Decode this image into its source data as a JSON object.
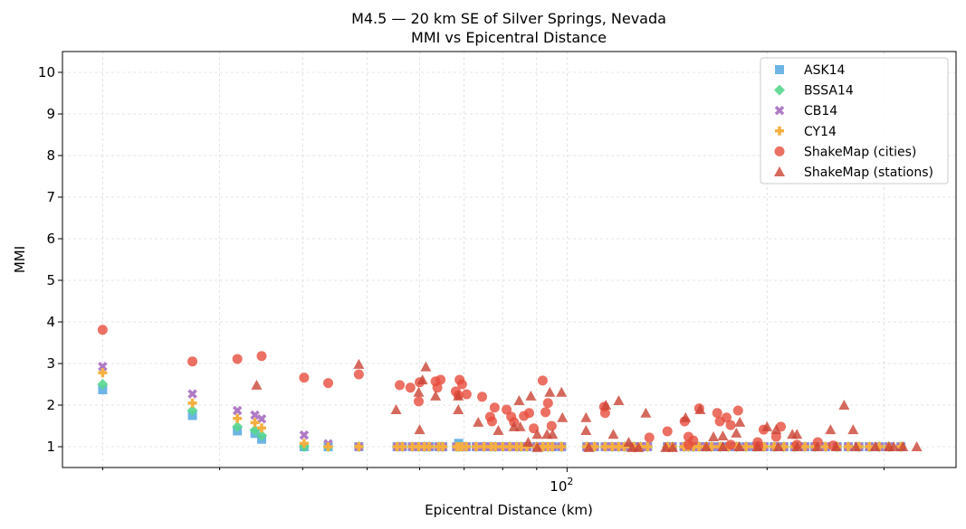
{
  "chart_data": {
    "type": "scatter",
    "title": "M4.5 — 20 km SE of Silver Springs, Nevada",
    "subtitle": "MMI vs Epicentral Distance",
    "xlabel": "Epicentral Distance (km)",
    "ylabel": "MMI",
    "xscale": "log",
    "xlim": [
      17.4,
      385
    ],
    "ylim": [
      0.5,
      10.5
    ],
    "x_major_ticks": [
      {
        "value": 100,
        "base": "10",
        "exp": "2"
      }
    ],
    "x_minor_ticks": [
      20,
      30,
      40,
      50,
      60,
      70,
      80,
      90,
      200,
      300
    ],
    "y_ticks": [
      "1",
      "2",
      "3",
      "4",
      "5",
      "6",
      "7",
      "8",
      "9",
      "10"
    ],
    "grid": true,
    "legend_position": "top-right",
    "model_distances": [
      20.0,
      27.3,
      31.9,
      33.9,
      34.7,
      40.2,
      43.7,
      48.6,
      55.5,
      56.5,
      58.5,
      59.8,
      61.0,
      62.0,
      64.1,
      65.0,
      68.2,
      68.7,
      69.5,
      70.5,
      73.0,
      75.0,
      76.9,
      78.0,
      80.0,
      82.0,
      84.0,
      85.3,
      87.0,
      90.0,
      92.0,
      93.6,
      95.0,
      98.1,
      107.1,
      110.0,
      114.1,
      117.0,
      119.6,
      122.0,
      126.0,
      129.0,
      132.2,
      141.6,
      144.0,
      150.0,
      152.3,
      155.0,
      158.0,
      162.0,
      165.0,
      170.0,
      175.0,
      180.0,
      186.0,
      192.0,
      198.0,
      205.0,
      212.0,
      220.0,
      228.0,
      236.0,
      245.0,
      255.0,
      265.0,
      275.0,
      285.0,
      295.0,
      305.0,
      318.0
    ],
    "series": [
      {
        "name": "ASK14",
        "marker": "square",
        "color": "#5DADE2",
        "y": [
          2.37,
          1.75,
          1.38,
          1.32,
          1.18,
          1.0,
          1.0,
          1,
          1,
          1,
          1,
          1,
          1,
          1,
          1,
          1,
          1,
          1.08,
          1,
          1,
          1,
          1,
          1,
          1,
          1,
          1,
          1,
          1,
          1,
          1,
          1,
          1,
          1,
          1,
          1,
          1,
          1,
          1,
          1,
          1,
          1,
          1,
          1,
          1,
          1,
          1,
          1,
          1,
          1,
          1,
          1,
          1,
          1,
          1,
          1,
          1,
          1,
          1,
          1,
          1,
          1,
          1,
          1,
          1,
          1,
          1,
          1,
          1,
          1,
          1
        ]
      },
      {
        "name": "BSSA14",
        "marker": "diamond",
        "color": "#58D68D",
        "y": [
          2.5,
          1.87,
          1.48,
          1.4,
          1.27,
          1.0,
          1.0,
          1,
          1,
          1,
          1,
          1,
          1,
          1,
          1,
          1,
          1,
          1,
          1,
          1,
          1,
          1,
          1,
          1,
          1,
          1,
          1,
          1,
          1,
          1,
          1,
          1,
          1,
          1,
          1,
          1,
          1,
          1,
          1,
          1,
          1,
          1,
          1,
          1,
          1,
          1,
          1,
          1,
          1,
          1,
          1,
          1,
          1,
          1,
          1,
          1,
          1,
          1,
          1,
          1,
          1,
          1,
          1,
          1,
          1,
          1,
          1,
          1,
          1,
          1
        ]
      },
      {
        "name": "CB14",
        "marker": "x",
        "color": "#AF7AC5",
        "y": [
          2.93,
          2.27,
          1.87,
          1.76,
          1.67,
          1.28,
          1.07,
          1,
          1,
          1,
          1,
          1,
          1,
          1,
          1,
          1,
          1,
          1,
          1,
          1,
          1,
          1,
          1,
          1,
          1,
          1,
          1,
          1,
          1,
          1,
          1,
          1,
          1,
          1,
          1,
          1,
          1,
          1,
          1,
          1,
          1,
          1,
          1,
          1,
          1,
          1,
          1,
          1,
          1,
          1,
          1,
          1,
          1,
          1,
          1,
          1,
          1,
          1,
          1,
          1,
          1,
          1,
          1,
          1,
          1,
          1,
          1,
          1,
          1,
          1
        ]
      },
      {
        "name": "CY14",
        "marker": "plus",
        "color": "#F5B041",
        "y": [
          2.78,
          2.05,
          1.68,
          1.58,
          1.45,
          1.08,
          1.0,
          1,
          1,
          1,
          1,
          1,
          1,
          1,
          1,
          1,
          1,
          1,
          1,
          1,
          1,
          1,
          1,
          1,
          1,
          1,
          1,
          1,
          1,
          1,
          1,
          1,
          1,
          1,
          1,
          1,
          1,
          1,
          1,
          1,
          1,
          1,
          1,
          1,
          1,
          1,
          1,
          1,
          1,
          1,
          1,
          1,
          1,
          1,
          1,
          1,
          1,
          1,
          1,
          1,
          1,
          1,
          1,
          1,
          1,
          1,
          1,
          1,
          1,
          1
        ]
      },
      {
        "name": "ShakeMap (cities)",
        "marker": "circle",
        "color": "#E74C3C",
        "x": [
          20.0,
          27.3,
          31.9,
          34.7,
          40.2,
          43.7,
          48.6,
          56.0,
          58.1,
          60.0,
          59.8,
          63.4,
          64.5,
          63.8,
          68.9,
          69.5,
          68.0,
          68.6,
          70.6,
          74.5,
          77.8,
          76.6,
          77.1,
          81.1,
          82.4,
          83.2,
          86.1,
          87.7,
          89.1,
          91.9,
          93.6,
          92.8,
          94.8,
          113.7,
          114.1,
          133.0,
          141.6,
          150.3,
          158.1,
          168.3,
          180.9,
          169.8,
          173.8,
          176.3,
          197.6,
          209.8,
          206.4,
          193.6,
          238.4,
          152.3,
          154.9,
          152.3,
          176.3,
          194.0,
          221.8,
          251.5
        ],
        "y": [
          3.81,
          3.05,
          3.11,
          3.18,
          2.66,
          2.53,
          2.74,
          2.48,
          2.42,
          2.55,
          2.09,
          2.57,
          2.61,
          2.42,
          2.61,
          2.5,
          2.33,
          2.24,
          2.26,
          2.2,
          1.94,
          1.72,
          1.61,
          1.89,
          1.72,
          1.59,
          1.74,
          1.81,
          1.44,
          2.59,
          2.05,
          1.83,
          1.5,
          1.96,
          1.81,
          1.22,
          1.37,
          1.61,
          1.92,
          1.81,
          1.87,
          1.61,
          1.7,
          1.52,
          1.41,
          1.48,
          1.24,
          1.11,
          1.11,
          1.24,
          1.15,
          1.05,
          1.05,
          1.02,
          1.05,
          1.03
        ]
      },
      {
        "name": "ShakeMap (stations)",
        "marker": "triangle",
        "color": "#CB4335",
        "x": [
          34.1,
          48.6,
          55.3,
          60.0,
          59.8,
          60.6,
          61.3,
          63.4,
          68.6,
          68.6,
          73.5,
          78.8,
          84.7,
          85.0,
          83.2,
          88.2,
          87.4,
          90.2,
          90.2,
          93.3,
          95.1,
          94.2,
          98.1,
          98.4,
          106.8,
          106.8,
          107.8,
          114.4,
          119.6,
          117.4,
          123.8,
          125.3,
          128.1,
          131.4,
          140.7,
          144.2,
          150.8,
          158.6,
          182.0,
          200.0,
          206.4,
          218.3,
          221.8,
          249.2,
          261.2,
          269.5,
          171.6,
          179.8,
          166.1,
          162.0,
          171.6,
          181.6,
          193.6,
          208.0,
          222.0,
          238.0,
          254.0,
          272.0,
          291.0,
          305.0,
          310.3,
          320.3,
          336.0
        ],
        "y": [
          2.48,
          2.98,
          1.89,
          1.41,
          2.31,
          2.61,
          2.92,
          2.22,
          2.22,
          1.89,
          1.59,
          1.39,
          2.11,
          1.48,
          1.48,
          2.22,
          1.11,
          1.3,
          0.98,
          1.3,
          1.3,
          2.31,
          2.31,
          1.7,
          1.7,
          1.39,
          0.98,
          2.0,
          2.11,
          1.3,
          1.11,
          0.98,
          0.98,
          1.81,
          0.98,
          0.98,
          1.7,
          1.89,
          1.59,
          1.48,
          1.41,
          1.3,
          1.3,
          1.41,
          2.0,
          1.41,
          1.26,
          1.33,
          1.24,
          1.0,
          1.0,
          1.0,
          1.0,
          1.0,
          1.0,
          1.0,
          1.0,
          1.0,
          1.0,
          1.0,
          1.0,
          1.0,
          1.0
        ]
      }
    ]
  }
}
